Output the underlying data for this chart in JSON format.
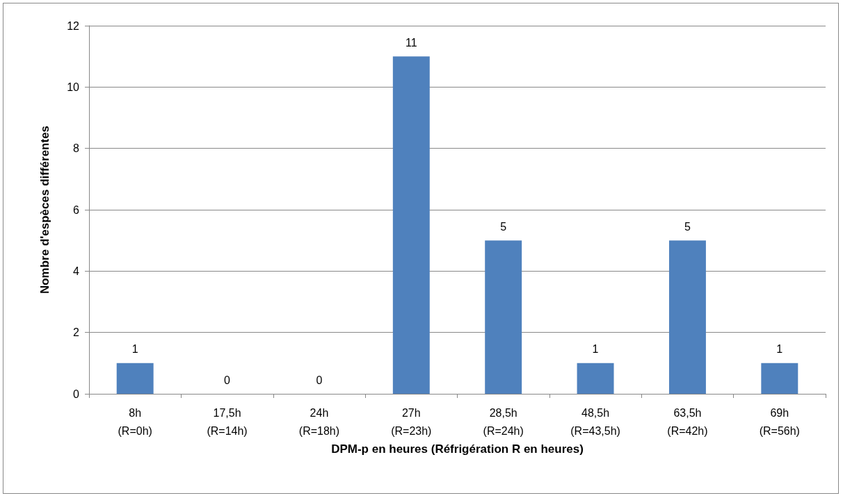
{
  "chart_data": {
    "type": "bar",
    "xlabel": "DPM-p en heures (Réfrigération R en heures)",
    "ylabel": "Nombre d'espèces différentes",
    "categories": [
      "8h\n(R=0h)",
      "17,5h\n(R=14h)",
      "24h\n(R=18h)",
      "27h\n(R=23h)",
      "28,5h\n(R=24h)",
      "48,5h\n(R=43,5h)",
      "63,5h\n(R=42h)",
      "69h\n(R=56h)"
    ],
    "values": [
      1,
      0,
      0,
      11,
      5,
      1,
      5,
      1
    ],
    "color": "#4f81bd",
    "ylim": [
      0,
      12
    ],
    "yticks": [
      0,
      2,
      4,
      6,
      8,
      10,
      12
    ],
    "grid": "y",
    "data_labels": true
  }
}
